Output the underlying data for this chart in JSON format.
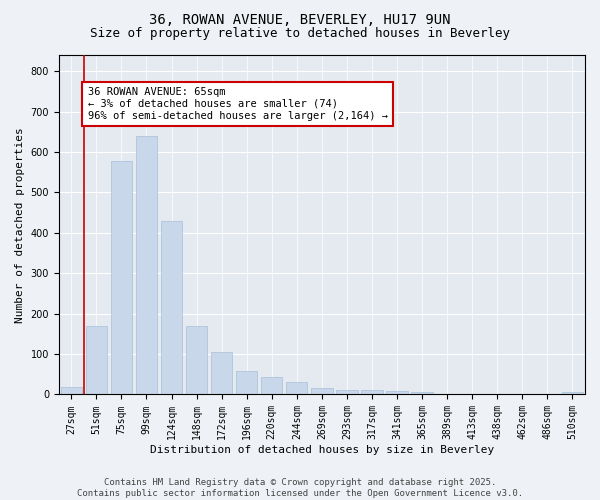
{
  "title_line1": "36, ROWAN AVENUE, BEVERLEY, HU17 9UN",
  "title_line2": "Size of property relative to detached houses in Beverley",
  "xlabel": "Distribution of detached houses by size in Beverley",
  "ylabel": "Number of detached properties",
  "categories": [
    "27sqm",
    "51sqm",
    "75sqm",
    "99sqm",
    "124sqm",
    "148sqm",
    "172sqm",
    "196sqm",
    "220sqm",
    "244sqm",
    "269sqm",
    "293sqm",
    "317sqm",
    "341sqm",
    "365sqm",
    "389sqm",
    "413sqm",
    "438sqm",
    "462sqm",
    "486sqm",
    "510sqm"
  ],
  "values": [
    18,
    170,
    578,
    640,
    430,
    170,
    105,
    57,
    42,
    32,
    15,
    12,
    10,
    9,
    5,
    0,
    0,
    0,
    0,
    0,
    7
  ],
  "bar_color": "#c8d8ea",
  "bar_edge_color": "#a8c0d8",
  "vline_color": "#cc0000",
  "vline_pos": 0.5,
  "annotation_text": "36 ROWAN AVENUE: 65sqm\n← 3% of detached houses are smaller (74)\n96% of semi-detached houses are larger (2,164) →",
  "annotation_box_color": "#ffffff",
  "annotation_box_edge": "#cc0000",
  "ylim": [
    0,
    840
  ],
  "yticks": [
    0,
    100,
    200,
    300,
    400,
    500,
    600,
    700,
    800
  ],
  "footer_text": "Contains HM Land Registry data © Crown copyright and database right 2025.\nContains public sector information licensed under the Open Government Licence v3.0.",
  "bg_color": "#eef2f6",
  "plot_bg_color": "#e4eaf0",
  "title_fontsize": 10,
  "subtitle_fontsize": 9,
  "axis_label_fontsize": 8,
  "tick_fontsize": 7,
  "footer_fontsize": 6.5,
  "annot_fontsize": 7.5
}
